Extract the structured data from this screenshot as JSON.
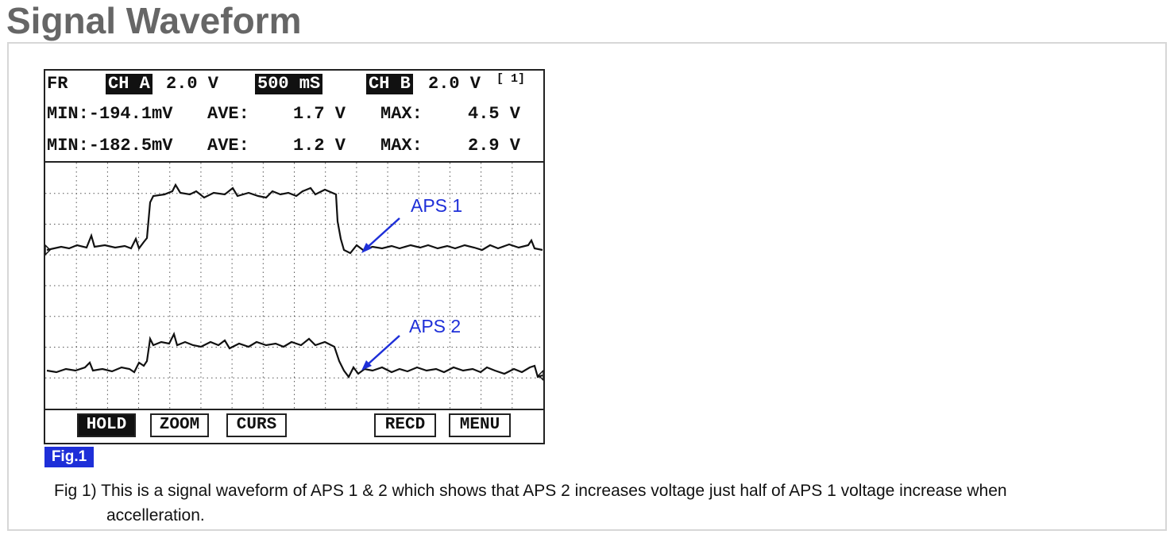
{
  "page": {
    "title": "Signal Waveform"
  },
  "scope": {
    "header": {
      "mode": "FR",
      "ch_a_label": "CH A",
      "ch_a_scale": "2.0 V",
      "timebase": "500 mS",
      "ch_b_label": "CH B",
      "ch_b_scale": "2.0 V",
      "page_index": "[ 1]"
    },
    "measurements": [
      {
        "min": "MIN:-194.1mV",
        "ave_label": "AVE:",
        "ave": "1.7 V",
        "max_label": "MAX:",
        "max": "4.5 V"
      },
      {
        "min": "MIN:-182.5mV",
        "ave_label": "AVE:",
        "ave": "1.2 V",
        "max_label": "MAX:",
        "max": "2.9 V"
      }
    ],
    "annotations": {
      "aps1": "APS 1",
      "aps2": "APS 2",
      "arrow_color": "#1e2fd8"
    },
    "softkeys": [
      {
        "label": "HOLD",
        "active": true
      },
      {
        "label": "ZOOM",
        "active": false
      },
      {
        "label": "CURS",
        "active": false
      },
      {
        "label": "RECD",
        "active": false
      },
      {
        "label": "MENU",
        "active": false
      }
    ]
  },
  "figure": {
    "badge": "Fig.1",
    "caption_line1": "Fig 1) This is a signal waveform of APS 1 & 2 which shows that APS 2 increases voltage just half of APS 1 voltage increase when",
    "caption_line2": "accelleration."
  }
}
